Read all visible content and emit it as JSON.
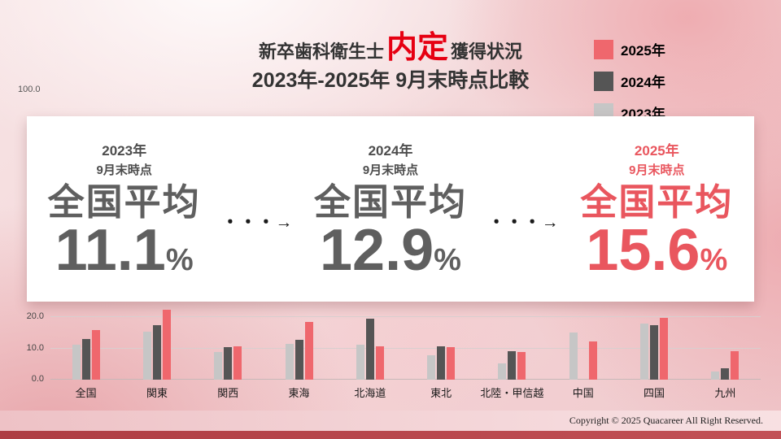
{
  "title": {
    "prefix": "新卒歯科衛生士",
    "highlight": "内定",
    "suffix": "獲得状況",
    "subtitle": "2023年-2025年 9月末時点比較"
  },
  "colors": {
    "accent_red": "#e60012",
    "summary_gray": "#5f5f5f",
    "summary_red": "#e9565e"
  },
  "legend": {
    "items": [
      {
        "label": "2025年",
        "color": "#ef676d"
      },
      {
        "label": "2024年",
        "color": "#555555"
      },
      {
        "label": "2023年",
        "color": "#c6c6c6"
      }
    ]
  },
  "summary": {
    "arrow": "・・・→",
    "items": [
      {
        "year": "2023年",
        "period": "9月末時点",
        "label": "全国平均",
        "value": "11.1",
        "unit": "%"
      },
      {
        "year": "2024年",
        "period": "9月末時点",
        "label": "全国平均",
        "value": "12.9",
        "unit": "%"
      },
      {
        "year": "2025年",
        "period": "9月末時点",
        "label": "全国平均",
        "value": "15.6",
        "unit": "%"
      }
    ]
  },
  "chart_data": {
    "type": "bar",
    "title": "新卒歯科衛生士 内定獲得状況 2023年-2025年 9月末時点比較",
    "categories": [
      "全国",
      "関東",
      "関西",
      "東海",
      "北海道",
      "東北",
      "北陸・甲信越",
      "中国",
      "四国",
      "九州"
    ],
    "series": [
      {
        "name": "2023年",
        "color": "#c6c6c6",
        "values": [
          11.1,
          15.2,
          8.7,
          11.2,
          11.0,
          7.8,
          5.1,
          14.9,
          17.7,
          2.6
        ]
      },
      {
        "name": "2024年",
        "color": "#555555",
        "values": [
          12.9,
          17.3,
          10.2,
          12.6,
          19.2,
          10.4,
          8.9,
          0,
          17.3,
          3.6
        ]
      },
      {
        "name": "2025年",
        "color": "#ef676d",
        "values": [
          15.6,
          22.0,
          10.5,
          18.1,
          10.4,
          10.3,
          8.8,
          12.0,
          19.5,
          8.9
        ]
      }
    ],
    "yticks": [
      "20.0",
      "10.0",
      "0.0"
    ],
    "top_axis_label": "100.0",
    "ylim": [
      0,
      22
    ],
    "grid": true,
    "legend_position": "top-right"
  },
  "footer": {
    "copyright": "Copyright © 2025 Quacareer All Right Reserved."
  }
}
